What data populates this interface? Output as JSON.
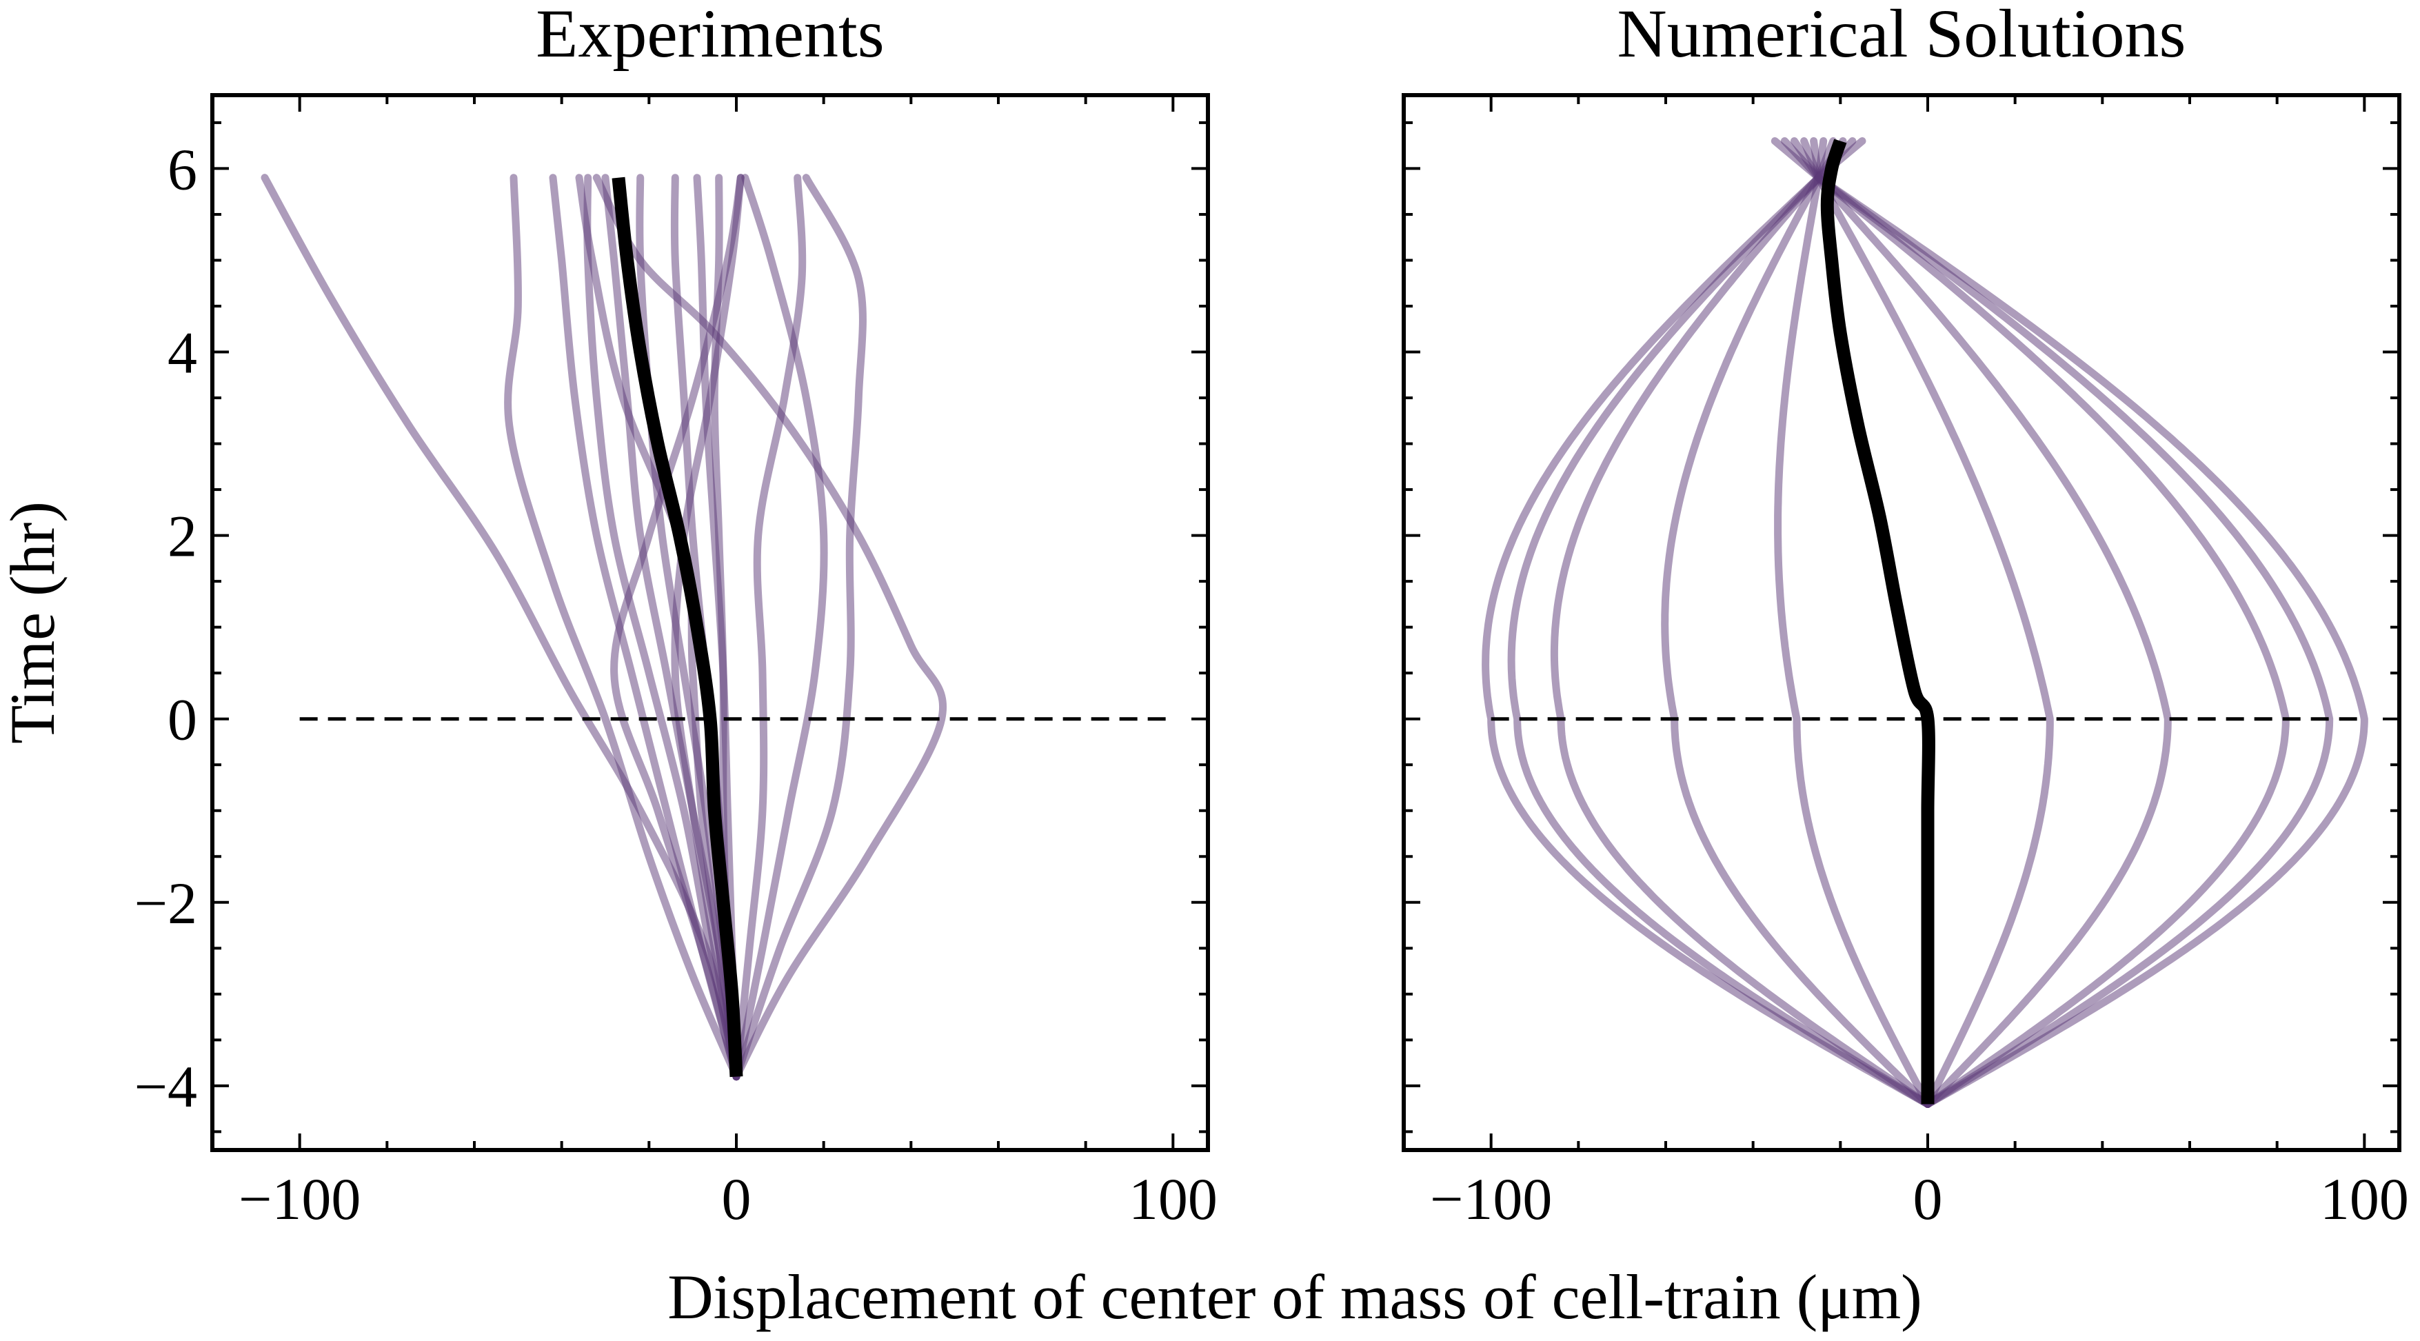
{
  "figure": {
    "shared_xlabel": "Displacement of center of mass of cell-train (μm)",
    "shared_ylabel": "Time (hr)"
  },
  "colors": {
    "trajectory": "#5b3a78",
    "trajectory_opacity": 0.5,
    "mean": "#000000",
    "zero_line": "#000000"
  },
  "chart_data": [
    {
      "type": "line",
      "title": "Experiments",
      "xlabel": "Displacement of center of mass of cell-train (μm)",
      "ylabel": "Time (hr)",
      "xlim": [
        -120,
        108
      ],
      "ylim": [
        -4.7,
        6.8
      ],
      "xticks": [
        -100,
        0,
        100
      ],
      "xtick_labels": [
        "−100",
        "0",
        "100"
      ],
      "yticks": [
        -4,
        -2,
        0,
        2,
        4,
        6
      ],
      "ytick_labels": [
        "−4",
        "−2",
        "0",
        "2",
        "4",
        "6"
      ],
      "grid": false,
      "reference_line": {
        "y": 0,
        "x_from": -100,
        "x_to": 100,
        "style": "dashed"
      },
      "mean_series": {
        "points": [
          [
            0,
            -3.9
          ],
          [
            -1,
            -3.0
          ],
          [
            -3,
            -2.0
          ],
          [
            -5,
            -1.0
          ],
          [
            -6,
            0
          ],
          [
            -9,
            1.0
          ],
          [
            -13,
            2.0
          ],
          [
            -18,
            3.0
          ],
          [
            -22,
            4.0
          ],
          [
            -25,
            5.0
          ],
          [
            -27,
            5.9
          ]
        ]
      },
      "series": [
        {
          "points": [
            [
              0,
              -3.9
            ],
            [
              -7,
              -2.5
            ],
            [
              -22,
              -1.0
            ],
            [
              -38,
              0.3
            ],
            [
              -55,
              1.8
            ],
            [
              -75,
              3.2
            ],
            [
              -93,
              4.6
            ],
            [
              -108,
              5.9
            ]
          ]
        },
        {
          "points": [
            [
              0,
              -3.9
            ],
            [
              -10,
              -2.8
            ],
            [
              -20,
              -1.5
            ],
            [
              -30,
              0
            ],
            [
              -42,
              1.5
            ],
            [
              -52,
              3.2
            ],
            [
              -50,
              4.5
            ],
            [
              -51,
              5.9
            ]
          ]
        },
        {
          "points": [
            [
              0,
              -3.9
            ],
            [
              -8,
              -2.5
            ],
            [
              -16,
              -1.0
            ],
            [
              -24,
              0.5
            ],
            [
              -32,
              2.0
            ],
            [
              -37,
              3.5
            ],
            [
              -40,
              5.0
            ],
            [
              -42,
              5.9
            ]
          ]
        },
        {
          "points": [
            [
              0,
              -3.9
            ],
            [
              -6,
              -2.5
            ],
            [
              -12,
              -1.0
            ],
            [
              -20,
              0.5
            ],
            [
              -28,
              2.0
            ],
            [
              -32,
              3.5
            ],
            [
              -34,
              5.0
            ],
            [
              -34,
              5.9
            ]
          ]
        },
        {
          "points": [
            [
              0,
              -3.9
            ],
            [
              -4,
              -2.5
            ],
            [
              -10,
              -1.0
            ],
            [
              -16,
              0.5
            ],
            [
              -22,
              2.0
            ],
            [
              -25,
              3.5
            ],
            [
              -28,
              5.0
            ],
            [
              -30,
              5.9
            ]
          ]
        },
        {
          "points": [
            [
              0,
              -3.9
            ],
            [
              -3,
              -2.5
            ],
            [
              -7,
              -1.0
            ],
            [
              -12,
              0.5
            ],
            [
              -17,
              2.0
            ],
            [
              -20,
              3.5
            ],
            [
              -22,
              5.0
            ],
            [
              -22,
              5.9
            ]
          ]
        },
        {
          "points": [
            [
              0,
              -3.9
            ],
            [
              -2,
              -2.5
            ],
            [
              -4,
              -1.0
            ],
            [
              -7,
              0.5
            ],
            [
              -10,
              2.0
            ],
            [
              -12,
              3.5
            ],
            [
              -14,
              5.0
            ],
            [
              -14,
              5.9
            ]
          ]
        },
        {
          "points": [
            [
              0,
              -3.9
            ],
            [
              -1,
              -2.5
            ],
            [
              -2,
              -1.0
            ],
            [
              -3,
              0.5
            ],
            [
              -5,
              2.0
            ],
            [
              -7,
              3.5
            ],
            [
              -8,
              5.0
            ],
            [
              -9,
              5.9
            ]
          ]
        },
        {
          "points": [
            [
              0,
              -3.9
            ],
            [
              -2,
              -2.5
            ],
            [
              -3,
              -1.0
            ],
            [
              -3,
              0.5
            ],
            [
              -4,
              2.0
            ],
            [
              -5,
              3.5
            ],
            [
              -4,
              5.0
            ],
            [
              -4,
              5.9
            ]
          ]
        },
        {
          "points": [
            [
              0,
              -3.9
            ],
            [
              -5,
              -2.5
            ],
            [
              -10,
              -1.0
            ],
            [
              -14,
              0.5
            ],
            [
              -12,
              2.0
            ],
            [
              -6,
              3.5
            ],
            [
              -1,
              5.0
            ],
            [
              1,
              5.9
            ]
          ]
        },
        {
          "points": [
            [
              0,
              -3.9
            ],
            [
              -8,
              -2.5
            ],
            [
              -18,
              -1.0
            ],
            [
              -28,
              0.5
            ],
            [
              -20,
              2.0
            ],
            [
              -10,
              3.5
            ],
            [
              -2,
              5.0
            ],
            [
              1,
              5.9
            ]
          ]
        },
        {
          "points": [
            [
              0,
              -3.9
            ],
            [
              -4,
              -2.5
            ],
            [
              -8,
              -1.0
            ],
            [
              -10,
              0.5
            ],
            [
              -12,
              1.8
            ],
            [
              -26,
              3.5
            ],
            [
              -33,
              5.0
            ],
            [
              -36,
              5.9
            ]
          ]
        },
        {
          "points": [
            [
              0,
              -3.9
            ],
            [
              3,
              -2.5
            ],
            [
              6,
              -1.0
            ],
            [
              6,
              0.5
            ],
            [
              5,
              2.0
            ],
            [
              11,
              3.5
            ],
            [
              15,
              4.8
            ],
            [
              14,
              5.9
            ]
          ]
        },
        {
          "points": [
            [
              0,
              -3.9
            ],
            [
              6,
              -2.5
            ],
            [
              12,
              -1.0
            ],
            [
              18,
              0.5
            ],
            [
              20,
              2.0
            ],
            [
              16,
              3.5
            ],
            [
              8,
              5.0
            ],
            [
              2,
              5.9
            ]
          ]
        },
        {
          "points": [
            [
              0,
              -3.9
            ],
            [
              10,
              -2.5
            ],
            [
              22,
              -1.0
            ],
            [
              26,
              0.5
            ],
            [
              26,
              2.0
            ],
            [
              28,
              3.5
            ],
            [
              28,
              4.8
            ],
            [
              16,
              5.9
            ]
          ]
        },
        {
          "points": [
            [
              0,
              -3.9
            ],
            [
              12,
              -2.8
            ],
            [
              30,
              -1.5
            ],
            [
              47,
              0
            ],
            [
              40,
              0.8
            ],
            [
              28,
              2.0
            ],
            [
              12,
              3.2
            ],
            [
              -5,
              4.2
            ],
            [
              -22,
              5.0
            ],
            [
              -32,
              5.9
            ]
          ]
        }
      ]
    },
    {
      "type": "line",
      "title": "Numerical Solutions",
      "xlabel": "Displacement of center of mass of cell-train (μm)",
      "ylabel": "Time (hr)",
      "xlim": [
        -120,
        108
      ],
      "ylim": [
        -4.7,
        6.8
      ],
      "xticks": [
        -100,
        0,
        100
      ],
      "xtick_labels": [
        "−100",
        "0",
        "100"
      ],
      "yticks": [
        -4,
        -2,
        0,
        2,
        4,
        6
      ],
      "ytick_labels": [
        "−4",
        "−2",
        "0",
        "2",
        "4",
        "6"
      ],
      "grid": false,
      "reference_line": {
        "y": 0,
        "x_from": -100,
        "x_to": 100,
        "style": "dashed"
      },
      "mean_series": {
        "points": [
          [
            0,
            -4.2
          ],
          [
            0,
            -3.0
          ],
          [
            0,
            -2.0
          ],
          [
            0,
            -1.0
          ],
          [
            0,
            0
          ],
          [
            -3,
            0.3
          ],
          [
            -7,
            1.2
          ],
          [
            -11,
            2.2
          ],
          [
            -16,
            3.2
          ],
          [
            -20,
            4.2
          ],
          [
            -22,
            5.0
          ],
          [
            -23,
            5.6
          ],
          [
            -22,
            6.0
          ],
          [
            -20,
            6.3
          ]
        ]
      },
      "sine_family": {
        "t_start": -4.2,
        "t_switch": 0,
        "t_top": 5.9,
        "amplitudes": [
          100,
          92,
          82,
          55,
          28,
          -100,
          -94,
          -84,
          -58,
          -30
        ],
        "lower_half_periods": 1.0,
        "upper_half_periods": 1.0,
        "upper_center": -25,
        "fan_top": 6.3,
        "fan_spread": [
          -35,
          -15
        ]
      }
    }
  ]
}
